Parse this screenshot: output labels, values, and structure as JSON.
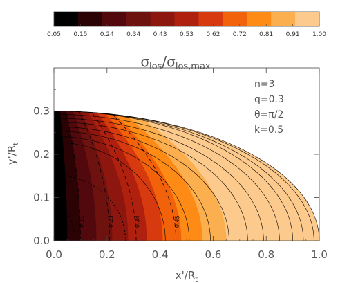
{
  "chart_data": {
    "type": "heatmap",
    "colorbar": {
      "title_symbol": "σ",
      "title_num_sub": "los",
      "title_den_sub": "los,max",
      "tick_labels": [
        "0.05",
        "0.15",
        "0.24",
        "0.34",
        "0.43",
        "0.53",
        "0.62",
        "0.72",
        "0.81",
        "0.91",
        "1.00"
      ],
      "level_colors": [
        "#000000",
        "#2b0305",
        "#52090e",
        "#6e1210",
        "#8d170f",
        "#b0200e",
        "#d63a0e",
        "#f2620a",
        "#fe8b16",
        "#fcaf4e",
        "#fdca8d"
      ]
    },
    "xlabel_main": "x'/R",
    "xlabel_sub": "t",
    "ylabel_main": "y'/R",
    "ylabel_sub": "t",
    "xlim": [
      0.0,
      1.0
    ],
    "ylim": [
      0.0,
      0.4
    ],
    "x_ticks": [
      0.0,
      0.2,
      0.4,
      0.6,
      0.8,
      1.0
    ],
    "x_tick_labels": [
      "0.0",
      "0.2",
      "0.4",
      "0.6",
      "0.8",
      "1.0"
    ],
    "y_ticks": [
      0.0,
      0.1,
      0.2,
      0.3
    ],
    "y_tick_labels": [
      "0.0",
      "0.1",
      "0.2",
      "0.3"
    ],
    "annotations": [
      "n=3",
      "q=0.3",
      "θ=π/2",
      "k=0.5"
    ],
    "boundary": {
      "a": 1.0,
      "b": 0.3
    },
    "fill_levels_x": [
      0.05,
      0.1,
      0.16,
      0.22,
      0.28,
      0.35,
      0.41,
      0.48,
      0.56,
      0.65
    ],
    "dashed_contour_labels": [
      "0.11",
      "0.23",
      "0.34",
      "0.45"
    ],
    "dashed_contour_x": [
      0.1,
      0.21,
      0.31,
      0.46
    ],
    "solid_contour_x": [
      0.42,
      0.51,
      0.59,
      0.66,
      0.73,
      0.79,
      0.85,
      0.9,
      0.94,
      0.98
    ],
    "dotted_contour_x": [
      0.08,
      0.27
    ]
  }
}
